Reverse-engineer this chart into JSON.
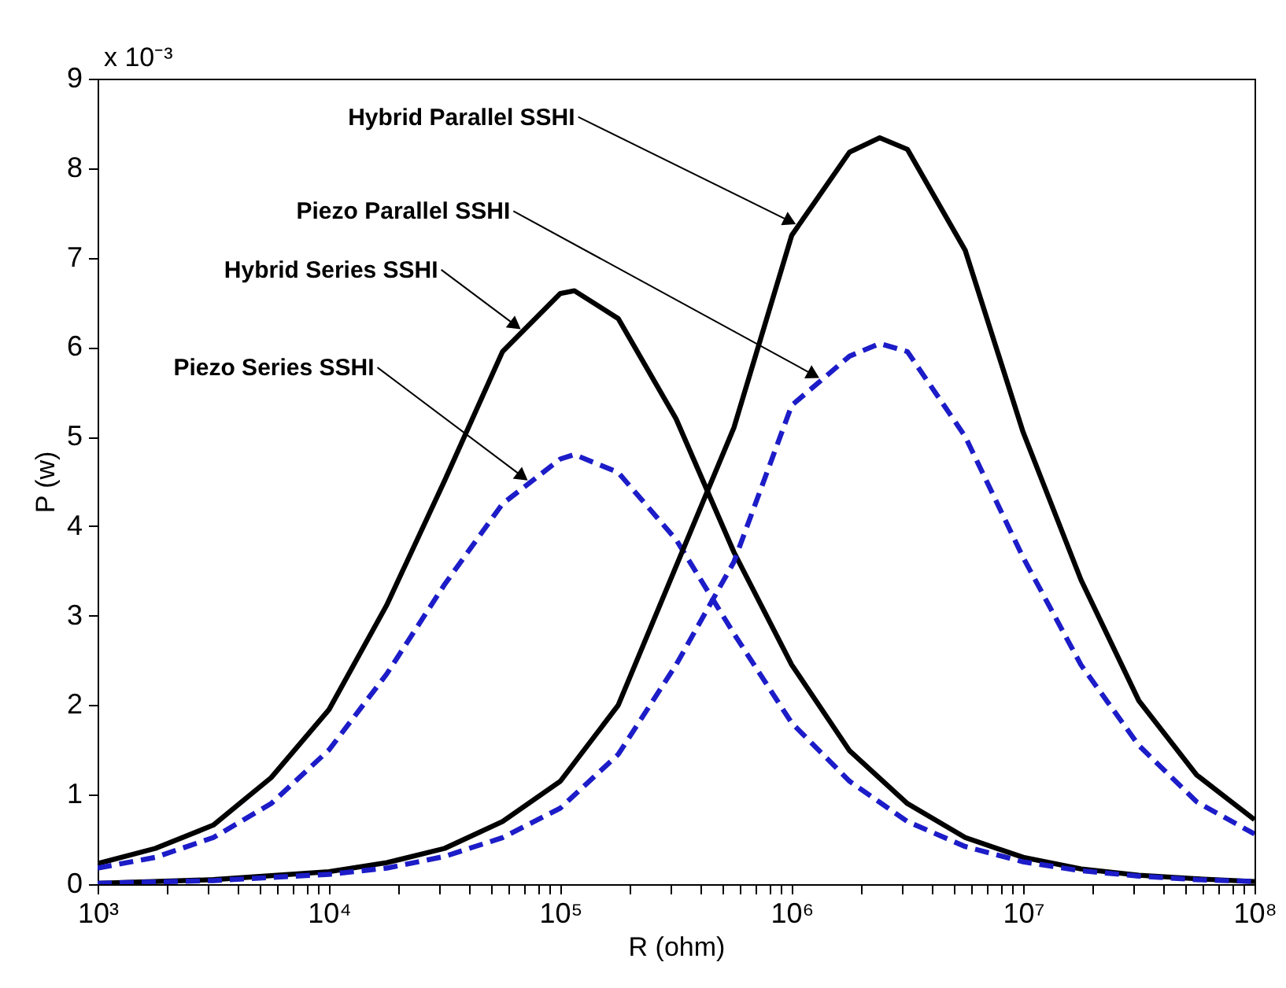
{
  "chart_data": {
    "type": "line",
    "xlabel": "R (ohm)",
    "ylabel": "P (w)",
    "log": "x",
    "grid": false,
    "legend": false,
    "xlim": [
      1000,
      100000000
    ],
    "ylim": [
      0,
      9
    ],
    "xticks": [
      {
        "value": 1000,
        "label": "10³"
      },
      {
        "value": 2000,
        "label": null
      },
      {
        "value": 3000,
        "label": null
      },
      {
        "value": 4000,
        "label": null
      },
      {
        "value": 5000,
        "label": null
      },
      {
        "value": 6000,
        "label": null
      },
      {
        "value": 7000,
        "label": null
      },
      {
        "value": 8000,
        "label": null
      },
      {
        "value": 9000,
        "label": null
      },
      {
        "value": 10000,
        "label": "10⁴"
      },
      {
        "value": 20000,
        "label": null
      },
      {
        "value": 30000,
        "label": null
      },
      {
        "value": 40000,
        "label": null
      },
      {
        "value": 50000,
        "label": null
      },
      {
        "value": 60000,
        "label": null
      },
      {
        "value": 70000,
        "label": null
      },
      {
        "value": 80000,
        "label": null
      },
      {
        "value": 90000,
        "label": null
      },
      {
        "value": 100000,
        "label": "10⁵"
      },
      {
        "value": 200000,
        "label": null
      },
      {
        "value": 300000,
        "label": null
      },
      {
        "value": 400000,
        "label": null
      },
      {
        "value": 500000,
        "label": null
      },
      {
        "value": 600000,
        "label": null
      },
      {
        "value": 700000,
        "label": null
      },
      {
        "value": 800000,
        "label": null
      },
      {
        "value": 900000,
        "label": null
      },
      {
        "value": 1000000,
        "label": "10⁶"
      },
      {
        "value": 2000000,
        "label": null
      },
      {
        "value": 3000000,
        "label": null
      },
      {
        "value": 4000000,
        "label": null
      },
      {
        "value": 5000000,
        "label": null
      },
      {
        "value": 6000000,
        "label": null
      },
      {
        "value": 7000000,
        "label": null
      },
      {
        "value": 8000000,
        "label": null
      },
      {
        "value": 9000000,
        "label": null
      },
      {
        "value": 10000000,
        "label": "10⁷"
      },
      {
        "value": 20000000,
        "label": null
      },
      {
        "value": 30000000,
        "label": null
      },
      {
        "value": 40000000,
        "label": null
      },
      {
        "value": 50000000,
        "label": null
      },
      {
        "value": 60000000,
        "label": null
      },
      {
        "value": 70000000,
        "label": null
      },
      {
        "value": 80000000,
        "label": null
      },
      {
        "value": 90000000,
        "label": null
      },
      {
        "value": 100000000,
        "label": "10⁸"
      }
    ],
    "yticks": [
      0,
      1,
      2,
      3,
      4,
      5,
      6,
      7,
      8,
      9
    ],
    "annotations": [
      "x 10⁻³",
      {
        "text": "Hybrid Parallel SSHI",
        "x": 1070000,
        "y": 7.36
      },
      {
        "text": "Piezo Parallel SSHI",
        "x": 1350000,
        "y": 5.64
      },
      {
        "text": "Hybrid Series SSHI",
        "x": 69000,
        "y": 6.18
      },
      {
        "text": "Piezo Series SSHI",
        "x": 74000,
        "y": 4.49
      }
    ],
    "series": [
      {
        "color": "#000000",
        "line_style": "solid",
        "x": [
          1000,
          1778,
          3162,
          5623,
          10000,
          17783,
          31623,
          56234,
          100000,
          115000,
          177828,
          316228,
          562341,
          1000000,
          1778279,
          3162278,
          5623413,
          10000000,
          17782794,
          31622777,
          56234133,
          100000000
        ],
        "values": [
          0.23,
          0.4,
          0.66,
          1.19,
          1.95,
          3.12,
          4.51,
          5.95,
          6.6,
          6.63,
          6.32,
          5.2,
          3.71,
          2.45,
          1.49,
          0.9,
          0.52,
          0.3,
          0.17,
          0.1,
          0.06,
          0.03
        ]
      },
      {
        "color": "#1c1cc8",
        "line_style": "dashed",
        "x": [
          1000,
          1778,
          3162,
          5623,
          10000,
          17783,
          31623,
          56234,
          100000,
          115000,
          177828,
          316228,
          562341,
          1000000,
          1778279,
          3162278,
          5623413,
          10000000,
          17782794,
          31622777,
          56234133,
          100000000
        ],
        "values": [
          0.18,
          0.3,
          0.52,
          0.9,
          1.5,
          2.35,
          3.35,
          4.25,
          4.75,
          4.8,
          4.6,
          3.85,
          2.8,
          1.8,
          1.15,
          0.7,
          0.42,
          0.25,
          0.15,
          0.09,
          0.05,
          0.03
        ]
      },
      {
        "color": "#000000",
        "line_style": "solid",
        "x": [
          1000,
          3162,
          10000,
          17783,
          31623,
          56234,
          100000,
          177828,
          316228,
          562341,
          1000000,
          1778279,
          2400000,
          3162278,
          5623413,
          10000000,
          17782794,
          31622777,
          56234133,
          100000000
        ],
        "values": [
          0.01,
          0.05,
          0.14,
          0.24,
          0.4,
          0.7,
          1.15,
          2.0,
          3.55,
          5.1,
          7.25,
          8.18,
          8.34,
          8.21,
          7.08,
          5.05,
          3.4,
          2.05,
          1.22,
          0.72
        ]
      },
      {
        "color": "#1c1cc8",
        "line_style": "dashed",
        "x": [
          1000,
          3162,
          10000,
          17783,
          31623,
          56234,
          100000,
          177828,
          316228,
          562341,
          1000000,
          1778279,
          2400000,
          3162278,
          5623413,
          10000000,
          17782794,
          31622777,
          56234133,
          100000000
        ],
        "values": [
          0.01,
          0.04,
          0.11,
          0.18,
          0.31,
          0.52,
          0.85,
          1.45,
          2.45,
          3.6,
          5.35,
          5.9,
          6.04,
          5.95,
          5.0,
          3.65,
          2.45,
          1.55,
          0.92,
          0.56
        ]
      }
    ]
  }
}
